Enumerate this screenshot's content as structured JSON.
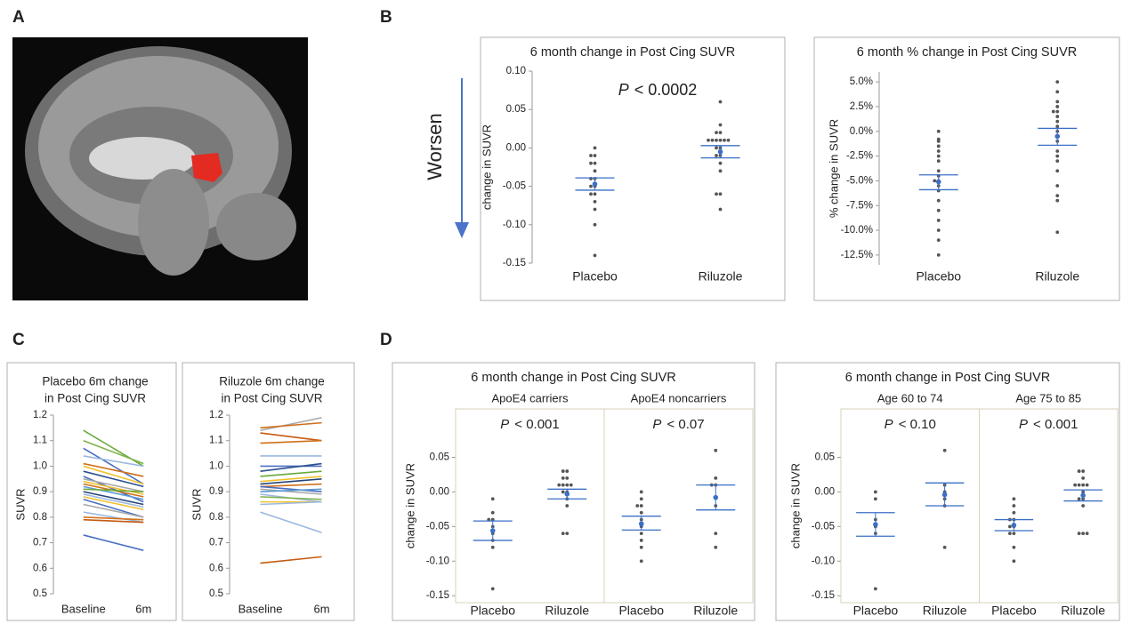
{
  "panel_labels": [
    "A",
    "B",
    "C",
    "D"
  ],
  "worsen_label": "Worsen",
  "chart_data": [
    {
      "type": "strip",
      "title": "6 month change in Post Cing SUVR",
      "y_label": "change in SUVR",
      "ylim": [
        -0.15,
        0.1
      ],
      "yticks": [
        -0.15,
        {
          "value": -0.1,
          "label": "-0.10"
        },
        -0.05,
        {
          "value": 0,
          "label": "0.00"
        },
        0.05,
        {
          "value": 0.1,
          "label": "0.10"
        }
      ],
      "plot_frame": false,
      "point_color": "#555555",
      "mean_color": "#3b6fc6",
      "facets": [
        {
          "p_symbol": "P",
          "p_value": "<  0.0002",
          "categories": [
            "Placebo",
            "Riluzole"
          ],
          "points": [
            [
              -0.14,
              -0.1,
              -0.08,
              -0.07,
              -0.06,
              -0.06,
              -0.05,
              -0.05,
              -0.04,
              -0.04,
              -0.03,
              -0.02,
              -0.02,
              -0.01,
              -0.01,
              0.0
            ],
            [
              0.06,
              0.03,
              0.02,
              0.02,
              0.01,
              0.01,
              0.01,
              0.01,
              0.01,
              0.01,
              0.0,
              0.0,
              -0.01,
              -0.01,
              -0.02,
              -0.03,
              -0.06,
              -0.06,
              -0.08
            ]
          ],
          "mean": [
            -0.047,
            -0.005
          ],
          "error_bars": [
            [
              -0.055,
              -0.039
            ],
            [
              -0.013,
              0.003
            ]
          ]
        }
      ]
    },
    {
      "type": "strip",
      "title": "6 month % change in Post Cing SUVR",
      "y_label": "% change in SUVR",
      "ylim": [
        -13.5,
        6.0
      ],
      "yticks": [
        {
          "value": -12.5,
          "label": "-12.5%"
        },
        {
          "value": -10,
          "label": "-10.0%"
        },
        {
          "value": -7.5,
          "label": "-7.5%"
        },
        {
          "value": -5,
          "label": "-5.0%"
        },
        {
          "value": -2.5,
          "label": "-2.5%"
        },
        {
          "value": 0,
          "label": "0.0%"
        },
        {
          "value": 2.5,
          "label": "2.5%"
        },
        {
          "value": 5,
          "label": "5.0%"
        }
      ],
      "plot_frame": false,
      "point_color": "#555555",
      "mean_color": "#3b6fc6",
      "facets": [
        {
          "categories": [
            "Placebo",
            "Riluzole"
          ],
          "points": [
            [
              0.0,
              -0.8,
              -1.0,
              -1.5,
              -2.0,
              -2.5,
              -3.0,
              -4.0,
              -4.5,
              -5.0,
              -5.0,
              -5.5,
              -6.0,
              -7.0,
              -8.0,
              -9.0,
              -10.0,
              -11.0,
              -12.5
            ],
            [
              5.0,
              4.0,
              3.0,
              2.5,
              2.0,
              2.0,
              1.5,
              1.0,
              0.5,
              0.0,
              -0.5,
              -1.0,
              -2.0,
              -2.5,
              -3.0,
              -4.0,
              -5.5,
              -6.5,
              -7.0,
              -10.2
            ]
          ],
          "mean": [
            -5.1,
            -0.5
          ],
          "error_bars": [
            [
              -5.9,
              -4.4
            ],
            [
              -1.4,
              0.3
            ]
          ]
        }
      ]
    },
    {
      "type": "line",
      "title_lines": [
        "Placebo 6m change",
        "in Post Cing SUVR"
      ],
      "y_label": "SUVR",
      "categories": [
        "Baseline",
        "6m"
      ],
      "ylim": [
        0.5,
        1.2
      ],
      "yticks": [
        0.5,
        0.6,
        0.7,
        0.8,
        0.9,
        {
          "value": 1,
          "label": "1.0"
        },
        1.1,
        1.2
      ],
      "series": [
        {
          "color": "#6aaa3a",
          "values": [
            1.14,
            1.0
          ]
        },
        {
          "color": "#7fb24a",
          "values": [
            1.1,
            1.01
          ]
        },
        {
          "color": "#4a6fc0",
          "values": [
            1.07,
            0.93
          ]
        },
        {
          "color": "#9ab8e0",
          "values": [
            1.04,
            1.0
          ]
        },
        {
          "color": "#d0701a",
          "values": [
            1.01,
            0.96
          ]
        },
        {
          "color": "#f2c12e",
          "values": [
            1.0,
            0.93
          ]
        },
        {
          "color": "#2c4f8f",
          "values": [
            0.98,
            0.92
          ]
        },
        {
          "color": "#4a6fc0",
          "values": [
            0.96,
            0.86
          ]
        },
        {
          "color": "#a9a9a9",
          "values": [
            0.95,
            0.9
          ]
        },
        {
          "color": "#f2c12e",
          "values": [
            0.94,
            0.89
          ]
        },
        {
          "color": "#d0701a",
          "values": [
            0.93,
            0.88
          ]
        },
        {
          "color": "#5b9bd5",
          "values": [
            0.92,
            0.87
          ]
        },
        {
          "color": "#6aaa3a",
          "values": [
            0.91,
            0.9
          ]
        },
        {
          "color": "#264478",
          "values": [
            0.9,
            0.85
          ]
        },
        {
          "color": "#9ab8e0",
          "values": [
            0.89,
            0.84
          ]
        },
        {
          "color": "#f2c12e",
          "values": [
            0.88,
            0.83
          ]
        },
        {
          "color": "#4a6fc0",
          "values": [
            0.87,
            0.8
          ]
        },
        {
          "color": "#a9a9a9",
          "values": [
            0.85,
            0.8
          ]
        },
        {
          "color": "#9ab8e0",
          "values": [
            0.82,
            0.78
          ]
        },
        {
          "color": "#d0701a",
          "values": [
            0.8,
            0.79
          ]
        },
        {
          "color": "#c55a11",
          "values": [
            0.79,
            0.78
          ]
        },
        {
          "color": "#4a6fc0",
          "values": [
            0.73,
            0.67
          ]
        }
      ]
    },
    {
      "type": "line",
      "title_lines": [
        "Riluzole 6m change",
        "in Post Cing SUVR"
      ],
      "y_label": "SUVR",
      "categories": [
        "Baseline",
        "6m"
      ],
      "ylim": [
        0.5,
        1.2
      ],
      "yticks": [
        0.5,
        0.6,
        0.7,
        0.8,
        0.9,
        {
          "value": 1,
          "label": "1.0"
        },
        1.1,
        1.2
      ],
      "series": [
        {
          "color": "#a9a9a9",
          "values": [
            1.14,
            1.19
          ]
        },
        {
          "color": "#d0701a",
          "values": [
            1.15,
            1.17
          ]
        },
        {
          "color": "#c55a11",
          "values": [
            1.13,
            1.1
          ]
        },
        {
          "color": "#d0701a",
          "values": [
            1.09,
            1.1
          ]
        },
        {
          "color": "#9ab8e0",
          "values": [
            1.04,
            1.04
          ]
        },
        {
          "color": "#4a6fc0",
          "values": [
            1.0,
            1.0
          ]
        },
        {
          "color": "#2c4f8f",
          "values": [
            0.98,
            1.01
          ]
        },
        {
          "color": "#6aaa3a",
          "values": [
            0.96,
            0.98
          ]
        },
        {
          "color": "#f2c12e",
          "values": [
            0.94,
            0.96
          ]
        },
        {
          "color": "#264478",
          "values": [
            0.93,
            0.95
          ]
        },
        {
          "color": "#d0701a",
          "values": [
            0.92,
            0.93
          ]
        },
        {
          "color": "#4a6fc0",
          "values": [
            0.92,
            0.9
          ]
        },
        {
          "color": "#a9a9a9",
          "values": [
            0.91,
            0.89
          ]
        },
        {
          "color": "#5b9bd5",
          "values": [
            0.9,
            0.91
          ]
        },
        {
          "color": "#9ab8e0",
          "values": [
            0.89,
            0.86
          ]
        },
        {
          "color": "#7fb24a",
          "values": [
            0.88,
            0.87
          ]
        },
        {
          "color": "#f2c12e",
          "values": [
            0.86,
            0.86
          ]
        },
        {
          "color": "#9ab8e0",
          "values": [
            0.85,
            0.86
          ]
        },
        {
          "color": "#9ab8e0",
          "values": [
            0.82,
            0.74
          ]
        },
        {
          "color": "#c55a11",
          "values": [
            0.62,
            0.645
          ]
        }
      ]
    },
    {
      "type": "strip",
      "title": "6 month change in Post Cing SUVR",
      "y_label": "change in SUVR",
      "ylim": [
        -0.16,
        0.12
      ],
      "yticks": [
        -0.15,
        {
          "value": -0.1,
          "label": "-0.10"
        },
        -0.05,
        {
          "value": 0,
          "label": "0.00"
        },
        0.05
      ],
      "plot_frame": true,
      "point_color": "#555555",
      "mean_color": "#3b6fc6",
      "facets": [
        {
          "subtitle": "ApoE4 carriers",
          "p_symbol": "P",
          "p_value": "<  0.001",
          "categories": [
            "Placebo",
            "Riluzole"
          ],
          "points": [
            [
              -0.14,
              -0.08,
              -0.07,
              -0.06,
              -0.05,
              -0.04,
              -0.04,
              -0.03,
              -0.01
            ],
            [
              0.03,
              0.03,
              0.02,
              0.02,
              0.01,
              0.01,
              0.01,
              0.01,
              0.0,
              0.0,
              -0.01,
              -0.02,
              -0.06,
              -0.06
            ]
          ],
          "mean": [
            -0.056,
            -0.003
          ],
          "error_bars": [
            [
              -0.07,
              -0.042
            ],
            [
              -0.01,
              0.004
            ]
          ]
        },
        {
          "subtitle": "ApoE4 noncarriers",
          "p_symbol": "P",
          "p_value": "<  0.07",
          "categories": [
            "Placebo",
            "Riluzole"
          ],
          "points": [
            [
              0.0,
              -0.01,
              -0.02,
              -0.02,
              -0.03,
              -0.04,
              -0.05,
              -0.06,
              -0.07,
              -0.08,
              -0.1
            ],
            [
              0.06,
              0.02,
              0.01,
              0.01,
              -0.02,
              -0.06,
              -0.08
            ]
          ],
          "mean": [
            -0.046,
            -0.008
          ],
          "error_bars": [
            [
              -0.055,
              -0.035
            ],
            [
              -0.026,
              0.01
            ]
          ]
        }
      ]
    },
    {
      "type": "strip",
      "title": "6 month change in Post Cing SUVR",
      "y_label": "change in SUVR",
      "ylim": [
        -0.16,
        0.12
      ],
      "yticks": [
        -0.15,
        {
          "value": -0.1,
          "label": "-0.10"
        },
        -0.05,
        {
          "value": 0,
          "label": "0.00"
        },
        0.05
      ],
      "plot_frame": true,
      "point_color": "#555555",
      "mean_color": "#3b6fc6",
      "facets": [
        {
          "subtitle": "Age 60 to 74",
          "p_symbol": "P",
          "p_value": "<  0.10",
          "categories": [
            "Placebo",
            "Riluzole"
          ],
          "points": [
            [
              0.0,
              -0.01,
              -0.04,
              -0.05,
              -0.06,
              -0.14
            ],
            [
              0.06,
              0.01,
              0.0,
              -0.01,
              -0.02,
              -0.08
            ]
          ],
          "mean": [
            -0.047,
            -0.004
          ],
          "error_bars": [
            [
              -0.064,
              -0.03
            ],
            [
              -0.02,
              0.013
            ]
          ]
        },
        {
          "subtitle": "Age 75 to 85",
          "p_symbol": "P",
          "p_value": "<  0.001",
          "categories": [
            "Placebo",
            "Riluzole"
          ],
          "points": [
            [
              -0.01,
              -0.02,
              -0.03,
              -0.04,
              -0.04,
              -0.05,
              -0.05,
              -0.06,
              -0.06,
              -0.08,
              -0.1
            ],
            [
              0.03,
              0.03,
              0.02,
              0.01,
              0.01,
              0.01,
              0.01,
              0.0,
              -0.01,
              -0.01,
              -0.02,
              -0.06,
              -0.06,
              -0.06
            ]
          ],
          "mean": [
            -0.048,
            -0.005
          ],
          "error_bars": [
            [
              -0.056,
              -0.04
            ],
            [
              -0.013,
              0.003
            ]
          ]
        }
      ]
    }
  ]
}
